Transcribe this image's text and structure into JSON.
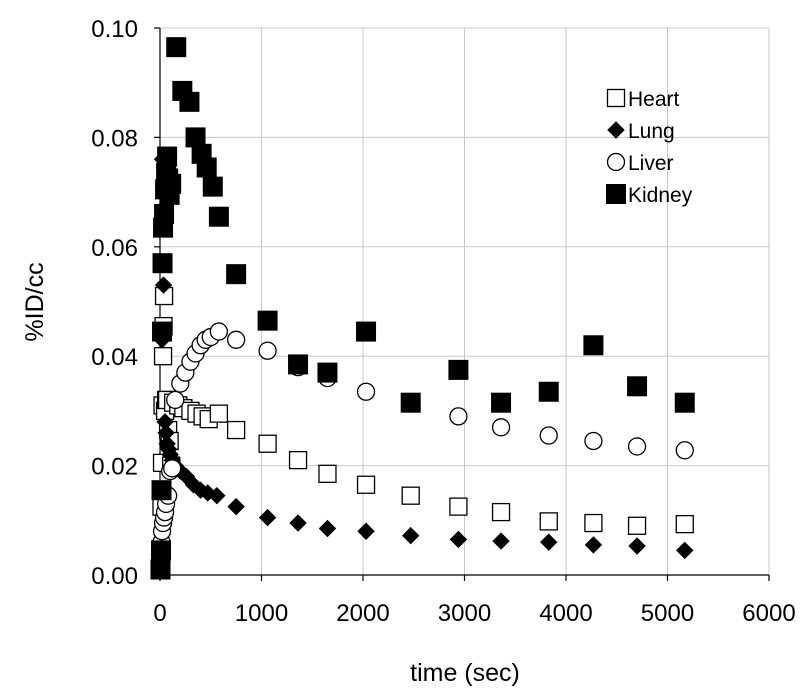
{
  "chart_data": {
    "type": "scatter",
    "xlabel": "time (sec)",
    "ylabel": "%ID/cc",
    "xlim": [
      0,
      6000
    ],
    "ylim": [
      0,
      0.1
    ],
    "xticks": [
      "0",
      "1000",
      "2000",
      "3000",
      "4000",
      "5000",
      "6000"
    ],
    "yticks": [
      "0.00",
      "0.02",
      "0.04",
      "0.06",
      "0.08",
      "0.10"
    ],
    "grid": "vertical-and-horizontal",
    "legend_position": "top-right",
    "series": [
      {
        "name": "Heart",
        "marker": "open-square",
        "points": [
          [
            5,
            0.002
          ],
          [
            10,
            0.004
          ],
          [
            15,
            0.0125
          ],
          [
            20,
            0.0205
          ],
          [
            25,
            0.031
          ],
          [
            30,
            0.04
          ],
          [
            35,
            0.0455
          ],
          [
            40,
            0.051
          ],
          [
            50,
            0.03
          ],
          [
            60,
            0.032
          ],
          [
            70,
            0.032
          ],
          [
            80,
            0.0265
          ],
          [
            95,
            0.0245
          ],
          [
            110,
            0.02
          ],
          [
            130,
            0.0315
          ],
          [
            180,
            0.031
          ],
          [
            230,
            0.0305
          ],
          [
            300,
            0.03
          ],
          [
            360,
            0.0295
          ],
          [
            420,
            0.029
          ],
          [
            480,
            0.0285
          ],
          [
            580,
            0.0295
          ],
          [
            750,
            0.0265
          ],
          [
            1060,
            0.024
          ],
          [
            1360,
            0.021
          ],
          [
            1650,
            0.0185
          ],
          [
            2030,
            0.0165
          ],
          [
            2470,
            0.0145
          ],
          [
            2940,
            0.0125
          ],
          [
            3360,
            0.0115
          ],
          [
            3830,
            0.0098
          ],
          [
            4270,
            0.0095
          ],
          [
            4700,
            0.009
          ],
          [
            5170,
            0.0093
          ]
        ]
      },
      {
        "name": "Lung",
        "marker": "filled-diamond",
        "points": [
          [
            5,
            0.001
          ],
          [
            10,
            0.003
          ],
          [
            15,
            0.015
          ],
          [
            20,
            0.043
          ],
          [
            25,
            0.076
          ],
          [
            30,
            0.067
          ],
          [
            35,
            0.053
          ],
          [
            40,
            0.044
          ],
          [
            50,
            0.028
          ],
          [
            60,
            0.026
          ],
          [
            70,
            0.024
          ],
          [
            85,
            0.023
          ],
          [
            100,
            0.022
          ],
          [
            120,
            0.021
          ],
          [
            150,
            0.02
          ],
          [
            200,
            0.019
          ],
          [
            260,
            0.018
          ],
          [
            330,
            0.0165
          ],
          [
            400,
            0.0155
          ],
          [
            470,
            0.015
          ],
          [
            560,
            0.0145
          ],
          [
            750,
            0.0125
          ],
          [
            1060,
            0.0105
          ],
          [
            1360,
            0.0095
          ],
          [
            1650,
            0.0085
          ],
          [
            2030,
            0.008
          ],
          [
            2470,
            0.0072
          ],
          [
            2940,
            0.0065
          ],
          [
            3360,
            0.0062
          ],
          [
            3830,
            0.006
          ],
          [
            4270,
            0.0055
          ],
          [
            4700,
            0.0053
          ],
          [
            5170,
            0.0045
          ]
        ]
      },
      {
        "name": "Liver",
        "marker": "open-circle",
        "points": [
          [
            5,
            0.001
          ],
          [
            10,
            0.003
          ],
          [
            15,
            0.006
          ],
          [
            20,
            0.008
          ],
          [
            30,
            0.0095
          ],
          [
            40,
            0.0105
          ],
          [
            50,
            0.0115
          ],
          [
            60,
            0.013
          ],
          [
            80,
            0.0145
          ],
          [
            100,
            0.019
          ],
          [
            120,
            0.0195
          ],
          [
            150,
            0.032
          ],
          [
            200,
            0.035
          ],
          [
            250,
            0.037
          ],
          [
            300,
            0.039
          ],
          [
            350,
            0.0405
          ],
          [
            400,
            0.042
          ],
          [
            450,
            0.043
          ],
          [
            500,
            0.0435
          ],
          [
            580,
            0.0445
          ],
          [
            750,
            0.043
          ],
          [
            1060,
            0.041
          ],
          [
            1360,
            0.038
          ],
          [
            1650,
            0.036
          ],
          [
            2030,
            0.0335
          ],
          [
            2470,
            0.0315
          ],
          [
            2940,
            0.029
          ],
          [
            3360,
            0.027
          ],
          [
            3830,
            0.0255
          ],
          [
            4270,
            0.0245
          ],
          [
            4700,
            0.0235
          ],
          [
            5170,
            0.0228
          ]
        ]
      },
      {
        "name": "Kidney",
        "marker": "filled-square",
        "points": [
          [
            5,
            0.001
          ],
          [
            10,
            0.0045
          ],
          [
            15,
            0.0155
          ],
          [
            20,
            0.0445
          ],
          [
            25,
            0.057
          ],
          [
            30,
            0.0635
          ],
          [
            40,
            0.066
          ],
          [
            50,
            0.0705
          ],
          [
            60,
            0.0735
          ],
          [
            70,
            0.0765
          ],
          [
            80,
            0.0725
          ],
          [
            95,
            0.0695
          ],
          [
            110,
            0.0715
          ],
          [
            160,
            0.0965
          ],
          [
            220,
            0.0885
          ],
          [
            290,
            0.0865
          ],
          [
            350,
            0.08
          ],
          [
            410,
            0.077
          ],
          [
            460,
            0.0745
          ],
          [
            520,
            0.071
          ],
          [
            580,
            0.0655
          ],
          [
            750,
            0.055
          ],
          [
            1060,
            0.0465
          ],
          [
            1360,
            0.0385
          ],
          [
            1650,
            0.037
          ],
          [
            2030,
            0.0445
          ],
          [
            2470,
            0.0315
          ],
          [
            2940,
            0.0375
          ],
          [
            3360,
            0.0315
          ],
          [
            3830,
            0.0335
          ],
          [
            4270,
            0.042
          ],
          [
            4700,
            0.0345
          ],
          [
            5170,
            0.0315
          ]
        ]
      }
    ]
  }
}
